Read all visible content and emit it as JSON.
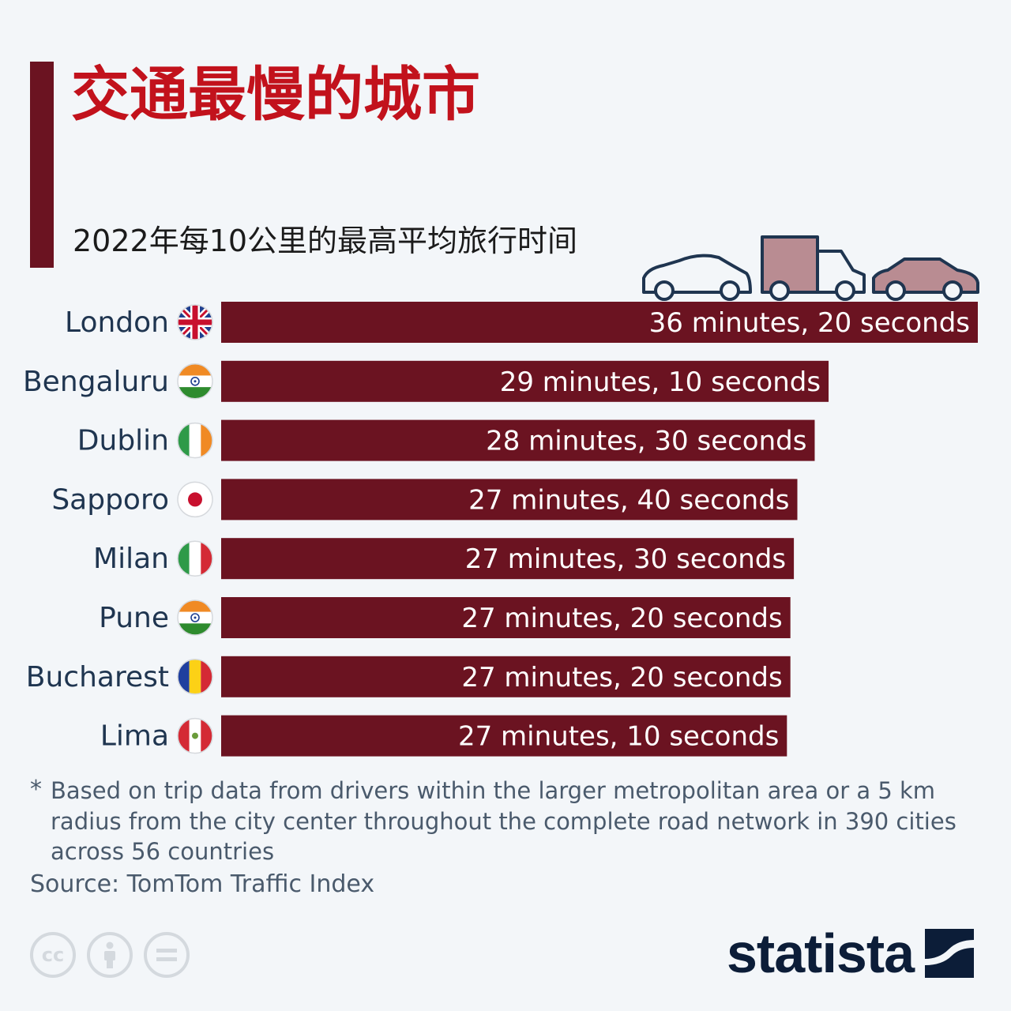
{
  "chart_data": {
    "type": "bar",
    "orientation": "horizontal",
    "title": "交通最慢的城市",
    "subtitle": "2022年每10公里的最高平均旅行时间",
    "categories": [
      "London",
      "Bengaluru",
      "Dublin",
      "Sapporo",
      "Milan",
      "Pune",
      "Bucharest",
      "Lima"
    ],
    "values": [
      36.333,
      29.167,
      28.5,
      27.667,
      27.5,
      27.333,
      27.333,
      27.167
    ],
    "value_unit": "minutes",
    "data_labels": [
      "36 minutes, 20 seconds",
      "29 minutes, 10 seconds",
      "28 minutes, 30 seconds",
      "27 minutes, 40 seconds",
      "27 minutes, 30 seconds",
      "27 minutes, 20 seconds",
      "27 minutes, 20 seconds",
      "27 minutes, 10 seconds"
    ],
    "flags": [
      "united-kingdom",
      "india",
      "ireland",
      "japan",
      "italy",
      "india",
      "romania",
      "peru"
    ],
    "xlim": [
      0,
      36.333
    ],
    "grid": false,
    "bar_color": "#6b1321"
  },
  "footnote_star": "*",
  "footnote": "Based on trip data from drivers within the larger metropolitan area or a 5 km radius from the city center throughout the complete road network in 390 cities across 56 countries",
  "source": "Source: TomTom Traffic Index",
  "license_icons": [
    "cc-icon",
    "attribution-icon",
    "no-derivatives-icon"
  ],
  "brand": "statista",
  "colors": {
    "title": "#c2121c",
    "bar": "#6b1321",
    "background": "#f3f6f9",
    "text": "#1f3550"
  }
}
